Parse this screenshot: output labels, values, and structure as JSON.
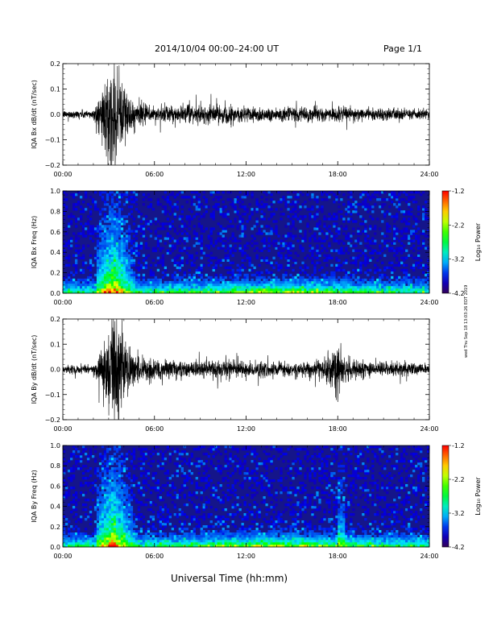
{
  "header": {
    "title": "2014/10/04  00:00–24:00 UT",
    "page": "Page 1/1"
  },
  "footer": {
    "xlabel": "Universal Time (hh:mm)"
  },
  "side_note": "wed Thu Sep 18 13:03:26 EDT 2019",
  "colors": {
    "waveform": "#000000",
    "spectrogram_background": "#1a1a8c"
  },
  "chart_data": [
    {
      "type": "line",
      "panel": "Bx waveform",
      "ylabel": "IQA Bx dB/dt (nT/sec)",
      "xticks": [
        "00:00",
        "06:00",
        "12:00",
        "18:00",
        "24:00"
      ],
      "xlim": [
        0,
        24
      ],
      "ylim": [
        -0.2,
        0.2
      ],
      "yticks": [
        "0.2",
        "0.1",
        "0.0",
        "−0.1",
        "−0.2"
      ],
      "amplitude_envelope": {
        "hours": [
          0,
          2,
          2.5,
          3,
          3.5,
          4,
          4.5,
          5,
          6,
          8,
          10,
          12,
          14,
          16,
          18,
          20,
          22,
          24
        ],
        "amplitude": [
          0.015,
          0.02,
          0.09,
          0.2,
          0.2,
          0.15,
          0.06,
          0.05,
          0.035,
          0.035,
          0.04,
          0.035,
          0.03,
          0.03,
          0.03,
          0.025,
          0.025,
          0.02
        ]
      }
    },
    {
      "type": "heatmap",
      "panel": "Bx spectrogram",
      "ylabel": "IQA Bx Freq (Hz)",
      "xticks": [
        "00:00",
        "06:00",
        "12:00",
        "18:00",
        "24:00"
      ],
      "xlim": [
        0,
        24
      ],
      "ylim": [
        0,
        1.0
      ],
      "yticks": [
        "1.0",
        "0.8",
        "0.6",
        "0.4",
        "0.2",
        "0.0"
      ],
      "colorbar": {
        "label": "Log₁₀ Power",
        "ticks": [
          "-1.2",
          "-2.2",
          "-3.2",
          "-4.2"
        ],
        "range": [
          -4.2,
          -1.2
        ]
      }
    },
    {
      "type": "line",
      "panel": "By waveform",
      "ylabel": "IQA By dB/dt (nT/sec)",
      "xticks": [
        "00:00",
        "06:00",
        "12:00",
        "18:00",
        "24:00"
      ],
      "xlim": [
        0,
        24
      ],
      "ylim": [
        -0.2,
        0.2
      ],
      "yticks": [
        "0.2",
        "0.1",
        "0.0",
        "−0.1",
        "−0.2"
      ],
      "amplitude_envelope": {
        "hours": [
          0,
          2,
          2.5,
          3,
          3.5,
          4,
          4.5,
          5,
          6,
          8,
          10,
          12,
          14,
          16,
          17.5,
          18,
          18.5,
          20,
          22,
          24
        ],
        "amplitude": [
          0.015,
          0.02,
          0.08,
          0.2,
          0.2,
          0.18,
          0.07,
          0.06,
          0.04,
          0.035,
          0.04,
          0.035,
          0.03,
          0.03,
          0.06,
          0.14,
          0.05,
          0.03,
          0.03,
          0.02
        ]
      }
    },
    {
      "type": "heatmap",
      "panel": "By spectrogram",
      "ylabel": "IQA By Freq (Hz)",
      "xticks": [
        "00:00",
        "06:00",
        "12:00",
        "18:00",
        "24:00"
      ],
      "xlim": [
        0,
        24
      ],
      "ylim": [
        0,
        1.0
      ],
      "yticks": [
        "1.0",
        "0.8",
        "0.6",
        "0.4",
        "0.2",
        "0.0"
      ],
      "colorbar": {
        "label": "Log₁₀ Power",
        "ticks": [
          "-1.2",
          "-2.2",
          "-3.2",
          "-4.2"
        ],
        "range": [
          -4.2,
          -1.2
        ]
      }
    }
  ]
}
